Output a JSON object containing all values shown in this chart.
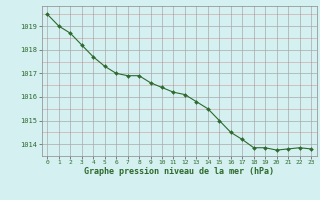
{
  "x": [
    0,
    1,
    2,
    3,
    4,
    5,
    6,
    7,
    8,
    9,
    10,
    11,
    12,
    13,
    14,
    15,
    16,
    17,
    18,
    19,
    20,
    21,
    22,
    23
  ],
  "y": [
    1019.5,
    1019.0,
    1018.7,
    1018.2,
    1017.7,
    1017.3,
    1017.0,
    1016.9,
    1016.9,
    1016.6,
    1016.4,
    1016.2,
    1016.1,
    1015.8,
    1015.5,
    1015.0,
    1014.5,
    1014.2,
    1013.85,
    1013.85,
    1013.75,
    1013.8,
    1013.85,
    1013.8
  ],
  "line_color": "#2d6a2d",
  "marker_color": "#2d6a2d",
  "bg_color": "#d4f0f0",
  "grid_color_major": "#aaaaaa",
  "grid_color_minor": "#cc7777",
  "xlabel": "Graphe pression niveau de la mer (hPa)",
  "xlabel_color": "#2d6a2d",
  "tick_color": "#2d6a2d",
  "ylim": [
    1013.5,
    1019.85
  ],
  "xlim": [
    -0.5,
    23.5
  ],
  "yticks": [
    1014,
    1015,
    1016,
    1017,
    1018,
    1019
  ],
  "xticks": [
    0,
    1,
    2,
    3,
    4,
    5,
    6,
    7,
    8,
    9,
    10,
    11,
    12,
    13,
    14,
    15,
    16,
    17,
    18,
    19,
    20,
    21,
    22,
    23
  ],
  "xtick_labels": [
    "0",
    "1",
    "2",
    "3",
    "4",
    "5",
    "6",
    "7",
    "8",
    "9",
    "10",
    "11",
    "12",
    "13",
    "14",
    "15",
    "16",
    "17",
    "18",
    "19",
    "20",
    "21",
    "22",
    "23"
  ]
}
